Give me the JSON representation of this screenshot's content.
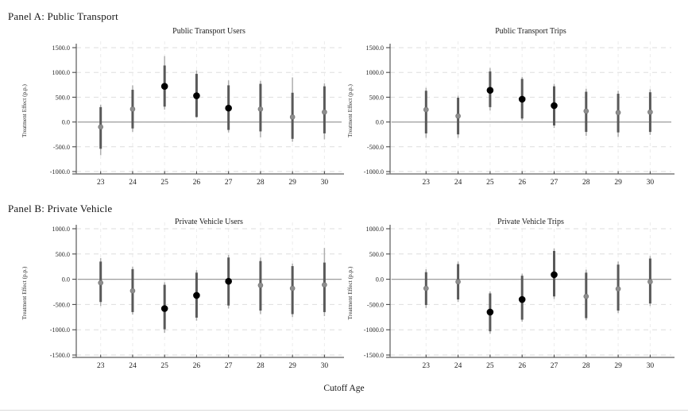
{
  "figure": {
    "xlabel": "Cutoff Age",
    "panels": [
      {
        "label": "Panel A: Public Transport"
      },
      {
        "label": "Panel B: Private Vehicle"
      }
    ]
  },
  "colors": {
    "significant_point": "#000000",
    "insignificant_point": "#8e8e8e",
    "ci_inner_band": "#595959",
    "ci_outer_band": "#aeaeae",
    "gridline": "#dedede",
    "zero_line": "#9c9c9c"
  },
  "chart_data": [
    {
      "type": "scatter",
      "panel": "A",
      "title": "Public Transport Users",
      "ylabel": "Treatment Effect (p.p.)",
      "xlabel": "Cutoff Age",
      "grid": true,
      "zero_line": true,
      "legend": "none",
      "categories": [
        "23",
        "24",
        "25",
        "26",
        "27",
        "28",
        "29",
        "30"
      ],
      "ylim": [
        -1000,
        1500
      ],
      "yticks": [
        1500,
        1000,
        500,
        0,
        -500,
        -1000
      ],
      "ytick_labels": [
        "1500.0",
        "1000.0",
        "500.0",
        "0.0",
        "-500.0",
        "-1000.0"
      ],
      "points": [
        {
          "cutoff_age": 23,
          "estimate": -100,
          "ci_inner": [
            -540,
            300
          ],
          "ci_outer": [
            -670,
            350
          ],
          "significant": false
        },
        {
          "cutoff_age": 24,
          "estimate": 260,
          "ci_inner": [
            -130,
            650
          ],
          "ci_outer": [
            -200,
            740
          ],
          "significant": false
        },
        {
          "cutoff_age": 25,
          "estimate": 720,
          "ci_inner": [
            310,
            1140
          ],
          "ci_outer": [
            250,
            1330
          ],
          "significant": true
        },
        {
          "cutoff_age": 26,
          "estimate": 530,
          "ci_inner": [
            100,
            970
          ],
          "ci_outer": [
            90,
            1040
          ],
          "significant": true
        },
        {
          "cutoff_age": 27,
          "estimate": 280,
          "ci_inner": [
            -160,
            740
          ],
          "ci_outer": [
            -210,
            840
          ],
          "significant": true
        },
        {
          "cutoff_age": 28,
          "estimate": 260,
          "ci_inner": [
            -190,
            770
          ],
          "ci_outer": [
            -310,
            830
          ],
          "significant": false
        },
        {
          "cutoff_age": 29,
          "estimate": 100,
          "ci_inner": [
            -340,
            590
          ],
          "ci_outer": [
            -400,
            900
          ],
          "significant": false
        },
        {
          "cutoff_age": 30,
          "estimate": 200,
          "ci_inner": [
            -230,
            720
          ],
          "ci_outer": [
            -350,
            780
          ],
          "significant": false
        }
      ]
    },
    {
      "type": "scatter",
      "panel": "A",
      "title": "Public Transport Trips",
      "ylabel": "Treatment Effect (p.p.)",
      "xlabel": "Cutoff Age",
      "grid": true,
      "zero_line": true,
      "legend": "none",
      "categories": [
        "23",
        "24",
        "25",
        "26",
        "27",
        "28",
        "29",
        "30"
      ],
      "ylim": [
        -1000,
        1500
      ],
      "yticks": [
        1500,
        1000,
        500,
        0,
        -500,
        -1000
      ],
      "ytick_labels": [
        "1500.0",
        "1000.0",
        "500.0",
        "0.0",
        "-500.0",
        "-1000.0"
      ],
      "points": [
        {
          "cutoff_age": 23,
          "estimate": 250,
          "ci_inner": [
            -230,
            630
          ],
          "ci_outer": [
            -320,
            690
          ],
          "significant": false
        },
        {
          "cutoff_age": 24,
          "estimate": 120,
          "ci_inner": [
            -250,
            490
          ],
          "ci_outer": [
            -320,
            530
          ],
          "significant": false
        },
        {
          "cutoff_age": 25,
          "estimate": 640,
          "ci_inner": [
            300,
            1020
          ],
          "ci_outer": [
            230,
            1090
          ],
          "significant": true
        },
        {
          "cutoff_age": 26,
          "estimate": 460,
          "ci_inner": [
            70,
            870
          ],
          "ci_outer": [
            30,
            910
          ],
          "significant": true
        },
        {
          "cutoff_age": 27,
          "estimate": 330,
          "ci_inner": [
            -70,
            720
          ],
          "ci_outer": [
            -120,
            770
          ],
          "significant": true
        },
        {
          "cutoff_age": 28,
          "estimate": 220,
          "ci_inner": [
            -200,
            610
          ],
          "ci_outer": [
            -280,
            670
          ],
          "significant": false
        },
        {
          "cutoff_age": 29,
          "estimate": 190,
          "ci_inner": [
            -210,
            570
          ],
          "ci_outer": [
            -300,
            630
          ],
          "significant": false
        },
        {
          "cutoff_age": 30,
          "estimate": 200,
          "ci_inner": [
            -200,
            600
          ],
          "ci_outer": [
            -260,
            660
          ],
          "significant": false
        }
      ]
    },
    {
      "type": "scatter",
      "panel": "B",
      "title": "Private Vehicle Users",
      "ylabel": "Treatment Effect (p.p.)",
      "xlabel": "Cutoff Age",
      "grid": true,
      "zero_line": true,
      "legend": "none",
      "categories": [
        "23",
        "24",
        "25",
        "26",
        "27",
        "28",
        "29",
        "30"
      ],
      "ylim": [
        -1500,
        1000
      ],
      "yticks": [
        1000,
        500,
        0,
        -500,
        -1000,
        -1500
      ],
      "ytick_labels": [
        "1000.0",
        "500.0",
        "0.0",
        "-500.0",
        "-1000.0",
        "-1500.0"
      ],
      "points": [
        {
          "cutoff_age": 23,
          "estimate": -70,
          "ci_inner": [
            -450,
            350
          ],
          "ci_outer": [
            -530,
            420
          ],
          "significant": false
        },
        {
          "cutoff_age": 24,
          "estimate": -230,
          "ci_inner": [
            -650,
            200
          ],
          "ci_outer": [
            -700,
            250
          ],
          "significant": false
        },
        {
          "cutoff_age": 25,
          "estimate": -580,
          "ci_inner": [
            -990,
            -110
          ],
          "ci_outer": [
            -1060,
            -60
          ],
          "significant": true
        },
        {
          "cutoff_age": 26,
          "estimate": -320,
          "ci_inner": [
            -760,
            130
          ],
          "ci_outer": [
            -820,
            180
          ],
          "significant": true
        },
        {
          "cutoff_age": 27,
          "estimate": -40,
          "ci_inner": [
            -520,
            430
          ],
          "ci_outer": [
            -580,
            480
          ],
          "significant": true
        },
        {
          "cutoff_age": 28,
          "estimate": -120,
          "ci_inner": [
            -620,
            360
          ],
          "ci_outer": [
            -690,
            430
          ],
          "significant": false
        },
        {
          "cutoff_age": 29,
          "estimate": -180,
          "ci_inner": [
            -690,
            260
          ],
          "ci_outer": [
            -750,
            310
          ],
          "significant": false
        },
        {
          "cutoff_age": 30,
          "estimate": -110,
          "ci_inner": [
            -650,
            330
          ],
          "ci_outer": [
            -730,
            620
          ],
          "significant": false
        }
      ]
    },
    {
      "type": "scatter",
      "panel": "B",
      "title": "Private Vehicle Trips",
      "ylabel": "Treatment Effect (p.p.)",
      "xlabel": "Cutoff Age",
      "grid": true,
      "zero_line": true,
      "legend": "none",
      "categories": [
        "23",
        "24",
        "25",
        "26",
        "27",
        "28",
        "29",
        "30"
      ],
      "ylim": [
        -1500,
        1000
      ],
      "yticks": [
        1000,
        500,
        0,
        -500,
        -1000,
        -1500
      ],
      "ytick_labels": [
        "1000.0",
        "500.0",
        "0.0",
        "-500.0",
        "-1000.0",
        "-1500.0"
      ],
      "points": [
        {
          "cutoff_age": 23,
          "estimate": -180,
          "ci_inner": [
            -510,
            140
          ],
          "ci_outer": [
            -570,
            200
          ],
          "significant": false
        },
        {
          "cutoff_age": 24,
          "estimate": -50,
          "ci_inner": [
            -400,
            300
          ],
          "ci_outer": [
            -450,
            350
          ],
          "significant": false
        },
        {
          "cutoff_age": 25,
          "estimate": -650,
          "ci_inner": [
            -1030,
            -280
          ],
          "ci_outer": [
            -1080,
            -240
          ],
          "significant": true
        },
        {
          "cutoff_age": 26,
          "estimate": -400,
          "ci_inner": [
            -800,
            70
          ],
          "ci_outer": [
            -840,
            110
          ],
          "significant": true
        },
        {
          "cutoff_age": 27,
          "estimate": 90,
          "ci_inner": [
            -340,
            560
          ],
          "ci_outer": [
            -390,
            610
          ],
          "significant": true
        },
        {
          "cutoff_age": 28,
          "estimate": -340,
          "ci_inner": [
            -770,
            130
          ],
          "ci_outer": [
            -810,
            190
          ],
          "significant": false
        },
        {
          "cutoff_age": 29,
          "estimate": -190,
          "ci_inner": [
            -620,
            290
          ],
          "ci_outer": [
            -670,
            350
          ],
          "significant": false
        },
        {
          "cutoff_age": 30,
          "estimate": -50,
          "ci_inner": [
            -480,
            410
          ],
          "ci_outer": [
            -530,
            460
          ],
          "significant": false
        }
      ]
    }
  ]
}
